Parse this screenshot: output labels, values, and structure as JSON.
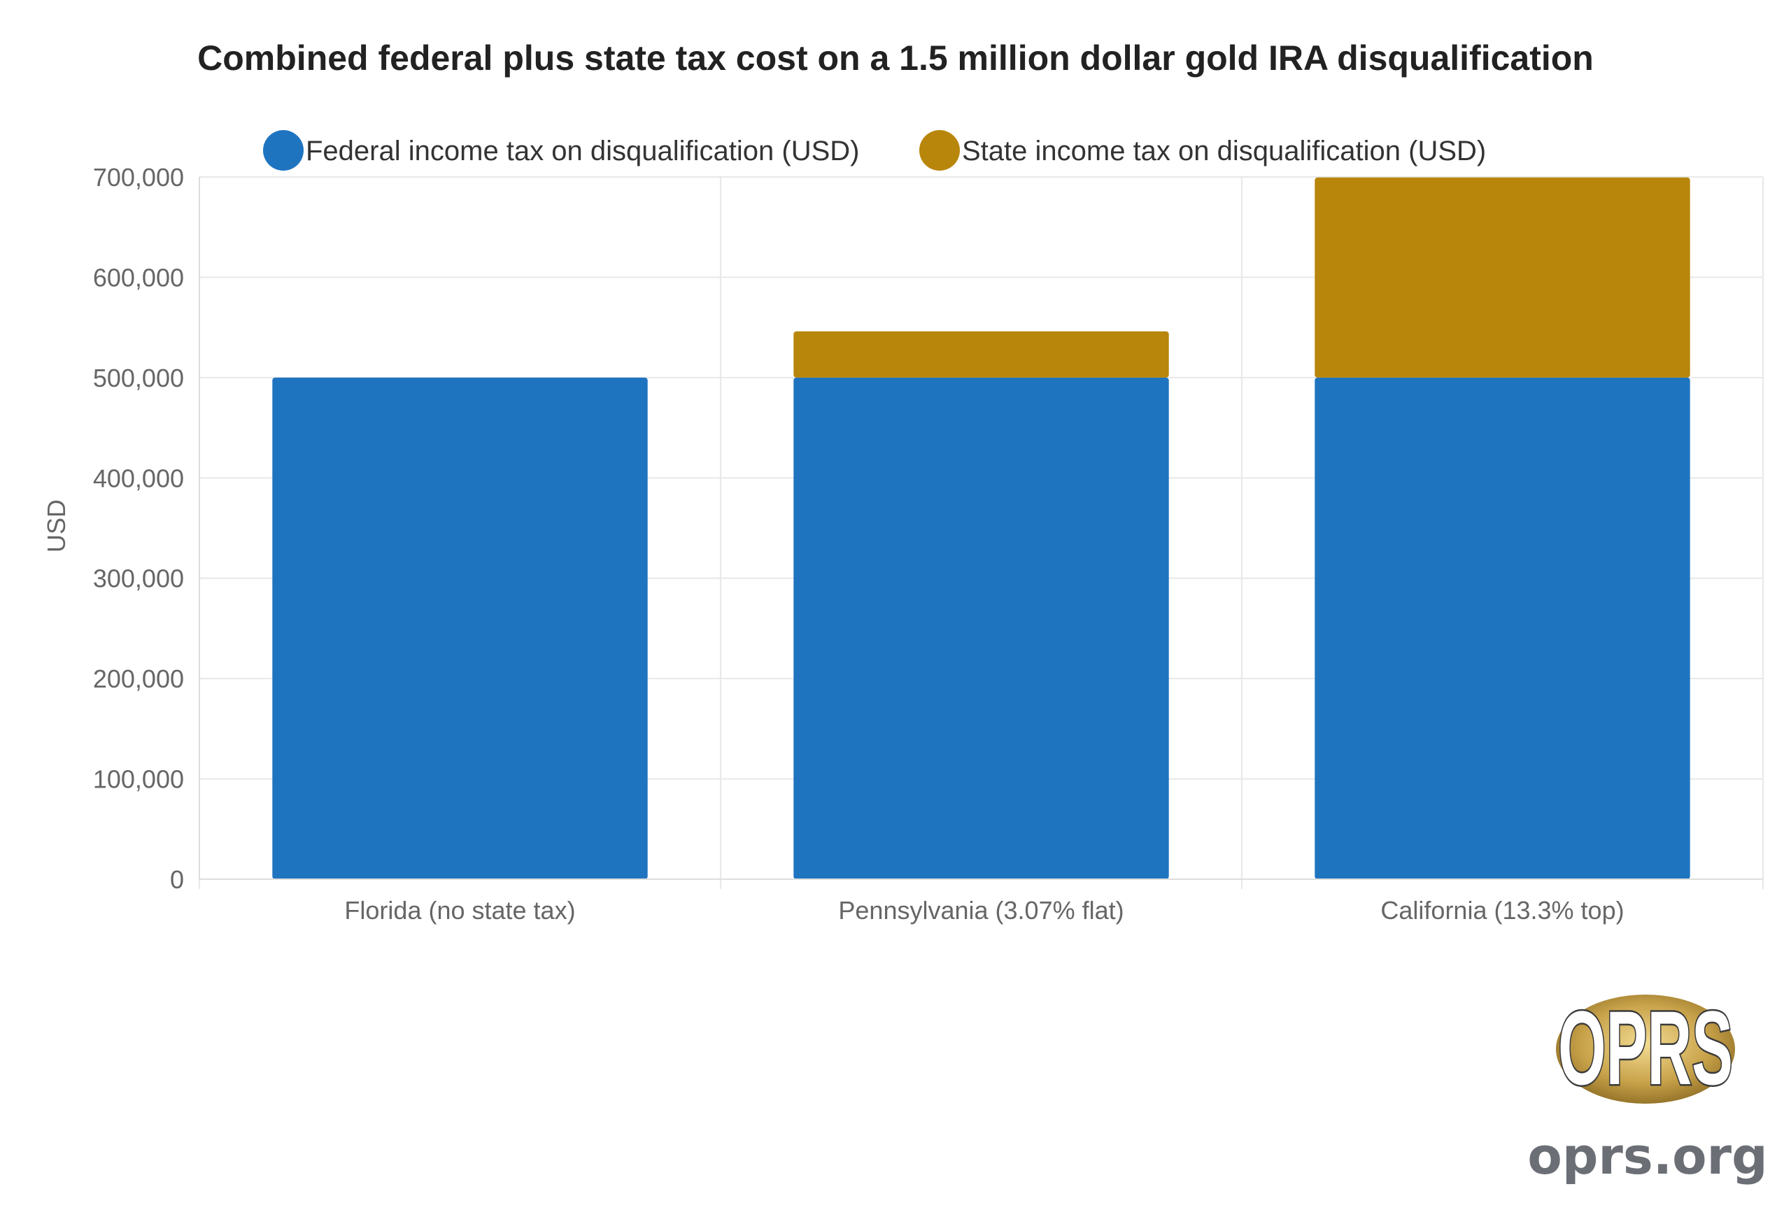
{
  "chart_data": {
    "type": "bar",
    "stacked": true,
    "title": "Combined federal plus state tax cost on a 1.5 million dollar gold IRA disqualification",
    "xlabel": "",
    "ylabel": "USD",
    "ylim": [
      0,
      700000
    ],
    "yticks": [
      "0",
      "100,000",
      "200,000",
      "300,000",
      "400,000",
      "500,000",
      "600,000",
      "700,000"
    ],
    "ytick_values": [
      0,
      100000,
      200000,
      300000,
      400000,
      500000,
      600000,
      700000
    ],
    "grid": true,
    "legend_position": "top",
    "categories": [
      "Florida (no state tax)",
      "Pennsylvania (3.07% flat)",
      "California (13.3% top)"
    ],
    "series": [
      {
        "name": "Federal income tax on disqualification (USD)",
        "color": "#1f74c0",
        "values": [
          500000,
          500000,
          500000
        ]
      },
      {
        "name": "State income tax on disqualification (USD)",
        "color": "#b8860b",
        "values": [
          0,
          46050,
          199500
        ]
      }
    ]
  },
  "branding": {
    "logo_text": "OPRS",
    "site": "oprs.org",
    "logo_gold": "#c8a24a"
  }
}
